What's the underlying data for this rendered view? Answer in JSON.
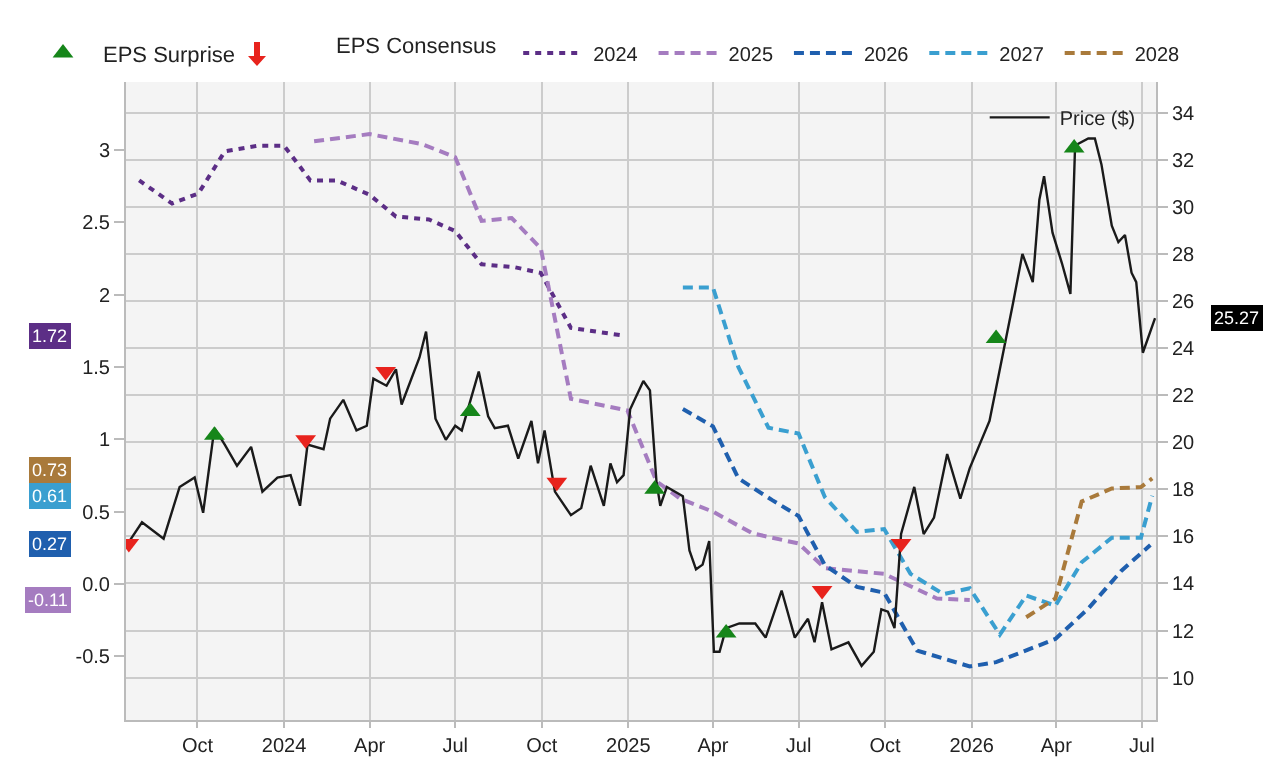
{
  "chart_data": {
    "type": "line",
    "legend": "top",
    "legend_title": "EPS Consensus",
    "grid": true,
    "xlim": [
      "2023-07-17",
      "2026-07-16"
    ],
    "xticks": [
      {
        "value": "2023-10-01",
        "label": "Oct"
      },
      {
        "value": "2024-01-01",
        "label": "2024"
      },
      {
        "value": "2024-04-01",
        "label": "Apr"
      },
      {
        "value": "2024-07-01",
        "label": "Jul"
      },
      {
        "value": "2024-10-01",
        "label": "Oct"
      },
      {
        "value": "2025-01-01",
        "label": "2025"
      },
      {
        "value": "2025-04-01",
        "label": "Apr"
      },
      {
        "value": "2025-07-01",
        "label": "Jul"
      },
      {
        "value": "2025-10-01",
        "label": "Oct"
      },
      {
        "value": "2026-01-01",
        "label": "2026"
      },
      {
        "value": "2026-04-01",
        "label": "Apr"
      },
      {
        "value": "2026-07-01",
        "label": "Jul"
      }
    ],
    "ylim": [
      -0.94,
      3.47
    ],
    "yticks": [
      -0.5,
      {
        "value": 0,
        "label": "0.0"
      },
      0.5,
      1,
      1.5,
      2,
      2.5,
      3
    ],
    "y2lim": [
      8.2,
      35.3
    ],
    "y2ticks": [
      10,
      12,
      14,
      16,
      18,
      20,
      22,
      24,
      26,
      28,
      30,
      32,
      34
    ],
    "annotations": [
      "1.72",
      "-0.11",
      "0.27",
      "0.61",
      "0.73",
      "25.27"
    ],
    "series": [
      {
        "name": "2024",
        "color": "#5c2e86",
        "line_style": "dotted",
        "x": [
          "2023-07-31",
          "2023-09-04",
          "2023-10-02",
          "2023-10-30",
          "2023-12-04",
          "2024-01-01",
          "2024-01-29",
          "2024-02-26",
          "2024-04-01",
          "2024-04-29",
          "2024-06-03",
          "2024-07-01",
          "2024-07-29",
          "2024-09-02",
          "2024-09-30",
          "2024-11-01",
          "2024-12-24"
        ],
        "values": [
          2.79,
          2.63,
          2.7,
          2.99,
          3.03,
          3.03,
          2.79,
          2.79,
          2.69,
          2.54,
          2.52,
          2.44,
          2.21,
          2.19,
          2.15,
          1.77,
          1.72
        ]
      },
      {
        "name": "2025",
        "color": "#a57cc0",
        "line_style": "dashed",
        "x": [
          "2024-02-02",
          "2024-04-01",
          "2024-05-27",
          "2024-07-01",
          "2024-07-29",
          "2024-08-30",
          "2024-09-30",
          "2024-11-01",
          "2024-12-31",
          "2025-01-31",
          "2025-02-25",
          "2025-04-01",
          "2025-05-13",
          "2025-07-01",
          "2025-07-29",
          "2025-09-30",
          "2025-11-25",
          "2025-12-30"
        ],
        "values": [
          3.06,
          3.11,
          3.04,
          2.95,
          2.51,
          2.53,
          2.32,
          1.28,
          1.2,
          0.71,
          0.59,
          0.5,
          0.35,
          0.28,
          0.11,
          0.07,
          -0.1,
          -0.11
        ]
      },
      {
        "name": "2026",
        "color": "#1f5fae",
        "line_style": "dashed",
        "x": [
          "2025-02-28",
          "2025-04-01",
          "2025-04-28",
          "2025-06-03",
          "2025-07-01",
          "2025-07-29",
          "2025-09-01",
          "2025-09-30",
          "2025-11-04",
          "2025-12-30",
          "2026-01-27",
          "2026-03-31",
          "2026-05-05",
          "2026-06-09",
          "2026-07-10"
        ],
        "values": [
          1.21,
          1.09,
          0.73,
          0.58,
          0.47,
          0.13,
          -0.02,
          -0.06,
          -0.46,
          -0.57,
          -0.54,
          -0.38,
          -0.17,
          0.09,
          0.27
        ]
      },
      {
        "name": "2027",
        "color": "#3a9fd0",
        "line_style": "dashed",
        "x": [
          "2025-02-28",
          "2025-04-01",
          "2025-04-28",
          "2025-05-30",
          "2025-07-01",
          "2025-07-29",
          "2025-09-01",
          "2025-09-30",
          "2025-10-28",
          "2025-12-02",
          "2025-12-30",
          "2026-01-31",
          "2026-02-28",
          "2026-03-31",
          "2026-04-28",
          "2026-05-30",
          "2026-06-30",
          "2026-07-12"
        ],
        "values": [
          2.05,
          2.05,
          1.5,
          1.08,
          1.04,
          0.6,
          0.36,
          0.38,
          0.07,
          -0.07,
          -0.03,
          -0.35,
          -0.08,
          -0.15,
          0.15,
          0.32,
          0.32,
          0.61
        ]
      },
      {
        "name": "2028",
        "color": "#a97a3b",
        "line_style": "dashed",
        "x": [
          "2026-02-28",
          "2026-03-31",
          "2026-04-28",
          "2026-05-30",
          "2026-06-30",
          "2026-07-12"
        ],
        "values": [
          -0.23,
          -0.1,
          0.57,
          0.66,
          0.67,
          0.73
        ]
      },
      {
        "name": "Price ($)",
        "color": "#1a1a1a",
        "axis": "y2",
        "line_style": "solid",
        "x": [
          "2023-07-19",
          "2023-08-03",
          "2023-08-26",
          "2023-09-12",
          "2023-09-28",
          "2023-10-07",
          "2023-10-19",
          "2023-10-30",
          "2023-11-12",
          "2023-11-27",
          "2023-12-09",
          "2023-12-25",
          "2024-01-08",
          "2024-01-18",
          "2024-01-26",
          "2024-02-12",
          "2024-02-19",
          "2024-03-04",
          "2024-03-18",
          "2024-03-29",
          "2024-04-05",
          "2024-04-19",
          "2024-04-29",
          "2024-05-05",
          "2024-05-24",
          "2024-05-31",
          "2024-06-10",
          "2024-06-21",
          "2024-07-01",
          "2024-07-08",
          "2024-07-26",
          "2024-08-05",
          "2024-08-12",
          "2024-08-26",
          "2024-09-06",
          "2024-09-20",
          "2024-09-27",
          "2024-10-04",
          "2024-10-15",
          "2024-11-01",
          "2024-11-12",
          "2024-11-22",
          "2024-12-06",
          "2024-12-13",
          "2024-12-20",
          "2024-12-27",
          "2025-01-03",
          "2025-01-17",
          "2025-01-24",
          "2025-01-31",
          "2025-02-04",
          "2025-02-11",
          "2025-02-28",
          "2025-03-07",
          "2025-03-14",
          "2025-03-21",
          "2025-03-28",
          "2025-04-02",
          "2025-04-08",
          "2025-04-15",
          "2025-04-29",
          "2025-05-16",
          "2025-05-27",
          "2025-06-13",
          "2025-06-27",
          "2025-07-11",
          "2025-07-18",
          "2025-07-26",
          "2025-08-05",
          "2025-08-23",
          "2025-09-06",
          "2025-09-19",
          "2025-09-27",
          "2025-10-04",
          "2025-10-11",
          "2025-10-18",
          "2025-11-01",
          "2025-11-11",
          "2025-11-22",
          "2025-12-06",
          "2025-12-20",
          "2025-12-30",
          "2026-01-20",
          "2026-01-27",
          "2026-02-14",
          "2026-02-24",
          "2026-03-07",
          "2026-03-14",
          "2026-03-19",
          "2026-03-28",
          "2026-04-07",
          "2026-04-16",
          "2026-04-21",
          "2026-05-05",
          "2026-05-12",
          "2026-05-19",
          "2026-05-30",
          "2026-06-06",
          "2026-06-13",
          "2026-06-20",
          "2026-06-25",
          "2026-07-02",
          "2026-07-15"
        ],
        "values": [
          15.7,
          16.6,
          15.9,
          18.1,
          18.5,
          17.0,
          20.6,
          19.9,
          19.0,
          19.8,
          17.9,
          18.5,
          18.6,
          17.3,
          19.9,
          19.7,
          21.0,
          21.8,
          20.5,
          20.7,
          22.7,
          22.4,
          23.1,
          21.6,
          23.6,
          24.7,
          21.0,
          20.1,
          20.7,
          20.5,
          23.0,
          21.1,
          20.6,
          20.7,
          19.3,
          20.9,
          19.1,
          20.5,
          17.9,
          16.9,
          17.2,
          19.0,
          17.3,
          19.1,
          18.3,
          18.6,
          21.4,
          22.6,
          22.2,
          18.3,
          17.3,
          18.1,
          17.7,
          15.4,
          14.6,
          14.8,
          15.8,
          11.1,
          11.1,
          12.1,
          12.3,
          12.3,
          11.7,
          13.7,
          11.7,
          12.5,
          11.5,
          13.2,
          11.2,
          11.5,
          10.5,
          11.1,
          12.9,
          12.8,
          12.1,
          16.1,
          18.1,
          16.1,
          16.8,
          19.5,
          17.6,
          18.9,
          20.9,
          22.3,
          25.9,
          28.0,
          26.8,
          30.3,
          31.3,
          28.9,
          27.6,
          26.3,
          32.6,
          32.9,
          32.9,
          31.8,
          29.2,
          28.5,
          28.8,
          27.2,
          26.8,
          23.8,
          25.27
        ]
      },
      {
        "name": "EPS Surprise",
        "type": "scatter",
        "marker": "triangle",
        "color": "#16861a",
        "axis": "y2",
        "x": [
          "2023-10-19",
          "2024-07-17",
          "2025-01-29",
          "2025-04-15",
          "2026-01-27",
          "2026-04-20"
        ],
        "values": [
          20.3,
          21.3,
          18.0,
          11.9,
          24.4,
          32.5
        ]
      },
      {
        "type": "scatter",
        "marker": "triangle",
        "color": "#e8231d",
        "axis": "y2",
        "x": [
          "2023-07-20",
          "2024-01-24",
          "2024-04-18",
          "2024-10-17",
          "2025-07-26",
          "2025-10-18"
        ],
        "values": [
          15.7,
          20.1,
          23.0,
          18.3,
          13.7,
          15.7
        ]
      }
    ]
  }
}
